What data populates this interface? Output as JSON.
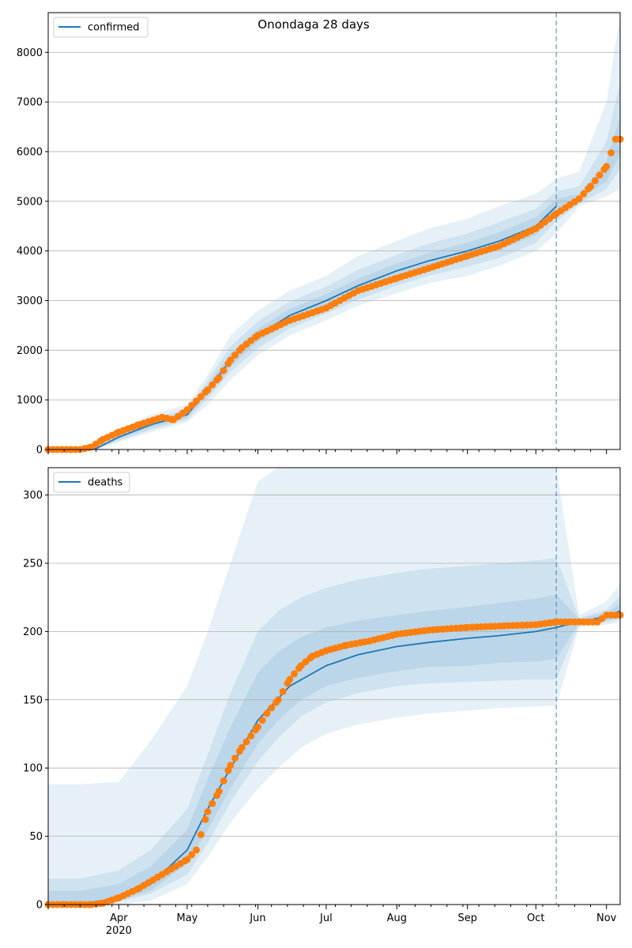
{
  "chart_data": [
    {
      "type": "line",
      "title": "Onondaga 28 days",
      "ylim": [
        0,
        8800
      ],
      "yticks": [
        0,
        1000,
        2000,
        3000,
        4000,
        5000,
        6000,
        7000,
        8000
      ],
      "xlim": [
        "2020-03-01",
        "2020-11-07"
      ],
      "grid": "horizontal",
      "legend": {
        "placement": "top-left",
        "entries": [
          "confirmed"
        ]
      },
      "forecast_start": "2020-10-10",
      "colors": {
        "model": "#1f77b4",
        "observed": "#ff7f0e",
        "band": "#1f77b4"
      },
      "series": [
        {
          "name": "confirmed",
          "kind": "model-median",
          "x": [
            "2020-03-01",
            "2020-03-15",
            "2020-03-22",
            "2020-04-01",
            "2020-04-15",
            "2020-05-01",
            "2020-05-10",
            "2020-05-20",
            "2020-06-01",
            "2020-06-15",
            "2020-07-01",
            "2020-07-15",
            "2020-08-01",
            "2020-08-15",
            "2020-09-01",
            "2020-09-15",
            "2020-10-01",
            "2020-10-10"
          ],
          "values": [
            0,
            0,
            20,
            250,
            500,
            700,
            1200,
            1800,
            2300,
            2700,
            3000,
            3300,
            3600,
            3800,
            4000,
            4200,
            4500,
            4900
          ]
        },
        {
          "name": "",
          "kind": "observed",
          "x": [
            "2020-03-01",
            "2020-03-15",
            "2020-03-20",
            "2020-03-25",
            "2020-04-01",
            "2020-04-10",
            "2020-04-20",
            "2020-04-25",
            "2020-05-01",
            "2020-05-10",
            "2020-05-15",
            "2020-05-20",
            "2020-05-25",
            "2020-06-01",
            "2020-06-15",
            "2020-07-01",
            "2020-07-15",
            "2020-08-01",
            "2020-08-15",
            "2020-09-01",
            "2020-09-15",
            "2020-10-01",
            "2020-10-10",
            "2020-10-20",
            "2020-10-25",
            "2020-11-01",
            "2020-11-05",
            "2020-11-07"
          ],
          "values": [
            0,
            0,
            50,
            200,
            350,
            500,
            650,
            600,
            800,
            1200,
            1450,
            1800,
            2050,
            2300,
            2600,
            2850,
            3200,
            3450,
            3650,
            3900,
            4100,
            4450,
            4750,
            5050,
            5300,
            5700,
            6250,
            6250
          ]
        }
      ],
      "bands": [
        {
          "level": "outer",
          "x": [
            "2020-03-01",
            "2020-03-15",
            "2020-03-22",
            "2020-04-01",
            "2020-04-15",
            "2020-05-01",
            "2020-05-10",
            "2020-05-20",
            "2020-06-01",
            "2020-06-15",
            "2020-07-01",
            "2020-07-15",
            "2020-08-01",
            "2020-08-15",
            "2020-09-01",
            "2020-09-15",
            "2020-10-01",
            "2020-10-10",
            "2020-10-20",
            "2020-11-01",
            "2020-11-07"
          ],
          "upper": [
            0,
            0,
            60,
            400,
            700,
            900,
            1500,
            2300,
            2800,
            3200,
            3500,
            3900,
            4200,
            4450,
            4650,
            4900,
            5150,
            5450,
            5600,
            7000,
            8750
          ],
          "lower": [
            0,
            0,
            0,
            150,
            350,
            550,
            900,
            1400,
            1900,
            2300,
            2600,
            2900,
            3150,
            3350,
            3500,
            3700,
            4000,
            4350,
            4900,
            5100,
            5250
          ]
        },
        {
          "level": "middle",
          "x": [
            "2020-03-01",
            "2020-03-15",
            "2020-03-22",
            "2020-04-01",
            "2020-04-15",
            "2020-05-01",
            "2020-05-10",
            "2020-05-20",
            "2020-06-01",
            "2020-06-15",
            "2020-07-01",
            "2020-07-15",
            "2020-08-01",
            "2020-08-15",
            "2020-09-01",
            "2020-09-15",
            "2020-10-01",
            "2020-10-10",
            "2020-10-20",
            "2020-11-01",
            "2020-11-07"
          ],
          "upper": [
            0,
            0,
            40,
            330,
            610,
            820,
            1380,
            2080,
            2580,
            2980,
            3280,
            3620,
            3920,
            4150,
            4350,
            4580,
            4850,
            5200,
            5300,
            6200,
            7400
          ],
          "lower": [
            0,
            0,
            0,
            180,
            400,
            600,
            1020,
            1560,
            2040,
            2440,
            2740,
            3020,
            3300,
            3500,
            3680,
            3860,
            4160,
            4600,
            4950,
            5250,
            5650
          ]
        },
        {
          "level": "inner",
          "x": [
            "2020-03-01",
            "2020-03-15",
            "2020-03-22",
            "2020-04-01",
            "2020-04-15",
            "2020-05-01",
            "2020-05-10",
            "2020-05-20",
            "2020-06-01",
            "2020-06-15",
            "2020-07-01",
            "2020-07-15",
            "2020-08-01",
            "2020-08-15",
            "2020-09-01",
            "2020-09-15",
            "2020-10-01",
            "2020-10-10",
            "2020-10-20",
            "2020-11-01",
            "2020-11-07"
          ],
          "upper": [
            0,
            0,
            30,
            290,
            560,
            760,
            1290,
            1930,
            2430,
            2830,
            3130,
            3440,
            3750,
            3960,
            4170,
            4380,
            4680,
            5050,
            5150,
            5800,
            6700
          ],
          "lower": [
            0,
            0,
            10,
            210,
            440,
            640,
            1110,
            1670,
            2170,
            2570,
            2870,
            3160,
            3450,
            3640,
            3830,
            4020,
            4320,
            4750,
            5050,
            5400,
            5950
          ]
        }
      ]
    },
    {
      "type": "line",
      "title": "",
      "ylim": [
        0,
        320
      ],
      "yticks": [
        0,
        50,
        100,
        150,
        200,
        250,
        300
      ],
      "xlim": [
        "2020-03-01",
        "2020-11-07"
      ],
      "xticks": [
        {
          "date": "2020-04-01",
          "label": "Apr",
          "sublabel": "2020"
        },
        {
          "date": "2020-05-01",
          "label": "May",
          "sublabel": ""
        },
        {
          "date": "2020-06-01",
          "label": "Jun",
          "sublabel": ""
        },
        {
          "date": "2020-07-01",
          "label": "Jul",
          "sublabel": ""
        },
        {
          "date": "2020-08-01",
          "label": "Aug",
          "sublabel": ""
        },
        {
          "date": "2020-09-01",
          "label": "Sep",
          "sublabel": ""
        },
        {
          "date": "2020-10-01",
          "label": "Oct",
          "sublabel": ""
        },
        {
          "date": "2020-11-01",
          "label": "Nov",
          "sublabel": ""
        }
      ],
      "grid": "horizontal",
      "legend": {
        "placement": "top-left",
        "entries": [
          "deaths"
        ]
      },
      "forecast_start": "2020-10-10",
      "colors": {
        "model": "#1f77b4",
        "observed": "#ff7f0e",
        "band": "#1f77b4"
      },
      "series": [
        {
          "name": "deaths",
          "kind": "model-median",
          "x": [
            "2020-03-01",
            "2020-03-15",
            "2020-04-01",
            "2020-04-15",
            "2020-05-01",
            "2020-05-10",
            "2020-05-20",
            "2020-06-01",
            "2020-06-15",
            "2020-07-01",
            "2020-07-15",
            "2020-08-01",
            "2020-08-15",
            "2020-09-01",
            "2020-09-15",
            "2020-10-01",
            "2020-10-10",
            "2020-10-20",
            "2020-11-01",
            "2020-11-07"
          ],
          "values": [
            0,
            0,
            5,
            15,
            40,
            70,
            100,
            135,
            160,
            175,
            183,
            189,
            192,
            195,
            197,
            200,
            203,
            207,
            211,
            215
          ]
        },
        {
          "name": "",
          "kind": "observed",
          "x": [
            "2020-03-01",
            "2020-03-20",
            "2020-03-25",
            "2020-04-01",
            "2020-04-10",
            "2020-04-20",
            "2020-05-01",
            "2020-05-05",
            "2020-05-10",
            "2020-05-15",
            "2020-05-20",
            "2020-05-25",
            "2020-06-01",
            "2020-06-05",
            "2020-06-10",
            "2020-06-15",
            "2020-06-20",
            "2020-06-25",
            "2020-07-01",
            "2020-07-10",
            "2020-07-20",
            "2020-08-01",
            "2020-08-15",
            "2020-09-01",
            "2020-09-15",
            "2020-10-01",
            "2020-10-10",
            "2020-10-20",
            "2020-10-28",
            "2020-11-01",
            "2020-11-07"
          ],
          "values": [
            0,
            0,
            1,
            5,
            12,
            22,
            33,
            40,
            68,
            83,
            102,
            115,
            130,
            140,
            150,
            165,
            175,
            182,
            186,
            190,
            193,
            198,
            201,
            203,
            204,
            205,
            207,
            207,
            207,
            212,
            212
          ]
        }
      ],
      "bands": [
        {
          "level": "outer",
          "x": [
            "2020-03-01",
            "2020-03-15",
            "2020-04-01",
            "2020-04-15",
            "2020-05-01",
            "2020-05-10",
            "2020-05-20",
            "2020-06-01",
            "2020-06-10",
            "2020-06-20",
            "2020-07-01",
            "2020-07-15",
            "2020-08-01",
            "2020-08-15",
            "2020-09-01",
            "2020-09-15",
            "2020-10-01",
            "2020-10-10",
            "2020-10-20",
            "2020-11-01",
            "2020-11-07"
          ],
          "upper": [
            88,
            88,
            90,
            120,
            160,
            200,
            250,
            310,
            320,
            320,
            320,
            320,
            320,
            320,
            320,
            320,
            320,
            320,
            212,
            222,
            235
          ],
          "lower": [
            0,
            0,
            0,
            3,
            15,
            35,
            60,
            85,
            100,
            115,
            125,
            132,
            137,
            140,
            142,
            144,
            145,
            146,
            203,
            205,
            207
          ]
        },
        {
          "level": "middle",
          "x": [
            "2020-03-01",
            "2020-03-15",
            "2020-04-01",
            "2020-04-15",
            "2020-05-01",
            "2020-05-10",
            "2020-05-20",
            "2020-06-01",
            "2020-06-10",
            "2020-06-20",
            "2020-07-01",
            "2020-07-15",
            "2020-08-01",
            "2020-08-15",
            "2020-09-01",
            "2020-09-15",
            "2020-10-01",
            "2020-10-10",
            "2020-10-20",
            "2020-11-01",
            "2020-11-07"
          ],
          "upper": [
            19,
            19,
            25,
            40,
            70,
            110,
            155,
            200,
            215,
            225,
            232,
            238,
            243,
            246,
            248,
            250,
            252,
            254,
            210,
            216,
            226
          ],
          "lower": [
            0,
            0,
            2,
            8,
            22,
            45,
            75,
            105,
            122,
            138,
            148,
            155,
            160,
            162,
            163,
            164,
            165,
            165,
            205,
            207,
            209
          ]
        },
        {
          "level": "inner",
          "x": [
            "2020-03-01",
            "2020-03-15",
            "2020-04-01",
            "2020-04-15",
            "2020-05-01",
            "2020-05-10",
            "2020-05-20",
            "2020-06-01",
            "2020-06-10",
            "2020-06-20",
            "2020-07-01",
            "2020-07-15",
            "2020-08-01",
            "2020-08-15",
            "2020-09-01",
            "2020-09-15",
            "2020-10-01",
            "2020-10-10",
            "2020-10-20",
            "2020-11-01",
            "2020-11-07"
          ],
          "upper": [
            10,
            10,
            15,
            28,
            55,
            92,
            130,
            170,
            185,
            196,
            203,
            208,
            212,
            215,
            218,
            221,
            224,
            227,
            209,
            214,
            220
          ],
          "lower": [
            0,
            0,
            3,
            10,
            30,
            55,
            85,
            118,
            135,
            150,
            160,
            166,
            171,
            174,
            175,
            177,
            178,
            180,
            206,
            208,
            211
          ]
        }
      ]
    }
  ]
}
